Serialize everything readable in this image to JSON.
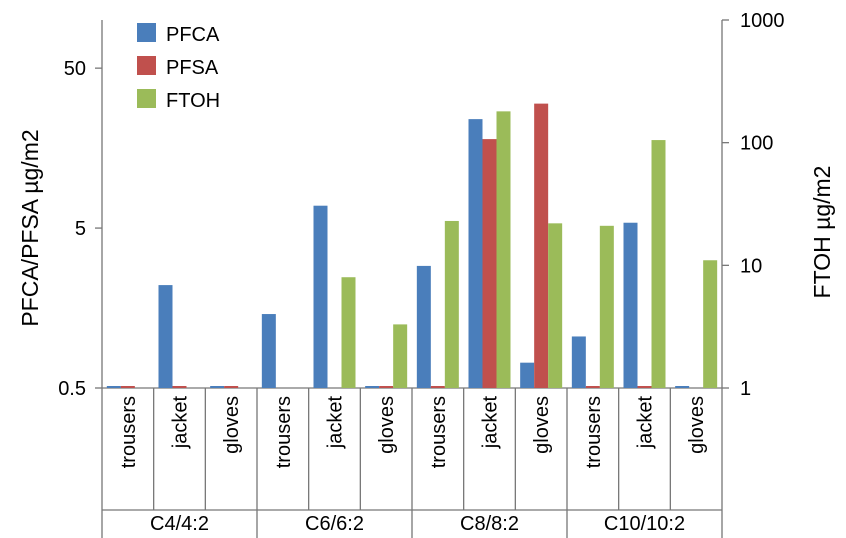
{
  "chart_data": {
    "type": "bar",
    "title": "",
    "left_axis": {
      "label": "PFCA/PFSA µg/m2",
      "scale": "log",
      "range": [
        0.5,
        100
      ],
      "ticks": [
        0.5,
        5,
        50
      ],
      "tick_labels": [
        "0.5",
        "5",
        "50"
      ]
    },
    "right_axis": {
      "label": "FTOH µg/m2",
      "scale": "log",
      "range": [
        1,
        1000
      ],
      "ticks": [
        1,
        10,
        100,
        1000
      ],
      "tick_labels": [
        "1",
        "10",
        "100",
        "1000"
      ]
    },
    "groups": [
      {
        "label": "C4/4:2",
        "categories": [
          "trousers",
          "jacket",
          "gloves"
        ]
      },
      {
        "label": "C6/6:2",
        "categories": [
          "trousers",
          "jacket",
          "gloves"
        ]
      },
      {
        "label": "C8/8:2",
        "categories": [
          "trousers",
          "jacket",
          "gloves"
        ]
      },
      {
        "label": "C10/10:2",
        "categories": [
          "trousers",
          "jacket",
          "gloves"
        ]
      }
    ],
    "series": [
      {
        "name": "PFCA",
        "axis": "left",
        "color": "#4a7ebb",
        "values": [
          0.5,
          2.2,
          0.5,
          1.45,
          6.9,
          0.5,
          2.9,
          24,
          0.72,
          1.05,
          5.4,
          0.5
        ]
      },
      {
        "name": "PFSA",
        "axis": "left",
        "color": "#c0504d",
        "values": [
          0.5,
          0.5,
          0.5,
          null,
          null,
          0.5,
          0.5,
          18,
          30,
          0.5,
          0.5,
          null
        ]
      },
      {
        "name": "FTOH",
        "axis": "right",
        "color": "#9bbb59",
        "values": [
          null,
          null,
          null,
          null,
          8,
          3.3,
          23,
          180,
          22,
          21,
          105,
          11
        ]
      }
    ],
    "legend": {
      "position": "top-left",
      "items": [
        "PFCA",
        "PFSA",
        "FTOH"
      ]
    },
    "grid": false
  }
}
